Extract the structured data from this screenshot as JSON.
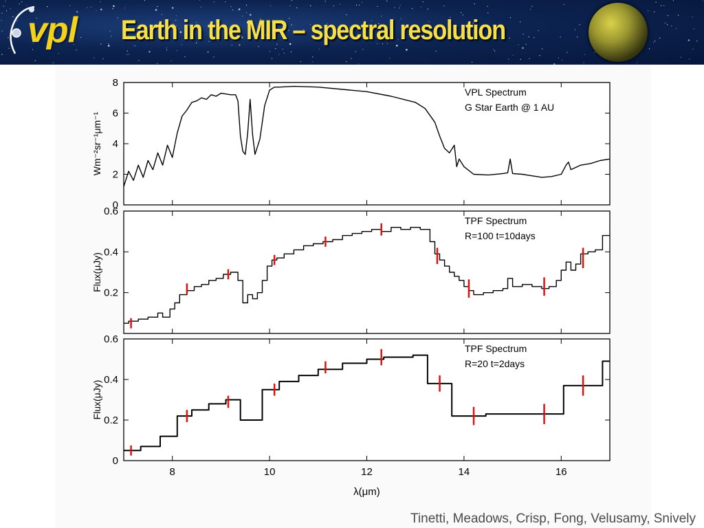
{
  "slide": {
    "title": "Earth in the MIR – spectral resolution",
    "logo_text": "vpl",
    "credit": "Tinetti, Meadows, Crisp, Fong, Velusamy, Snively",
    "colors": {
      "banner": "#0c2350",
      "title": "#f6e04a",
      "logo": "#f3d21c",
      "error_bar": "#e01010",
      "line": "#000000"
    }
  },
  "chart_data": [
    {
      "type": "line",
      "name": "panel-1",
      "legend": [
        "VPL Spectrum",
        "G Star Earth @ 1 AU"
      ],
      "ylabel": "Wm⁻²sr⁻¹μm⁻¹",
      "xlim": [
        7,
        17
      ],
      "ylim": [
        0,
        8
      ],
      "yticks": [
        0,
        2,
        4,
        6,
        8
      ],
      "x": [
        7.0,
        7.1,
        7.2,
        7.3,
        7.4,
        7.5,
        7.6,
        7.7,
        7.8,
        7.9,
        8.0,
        8.1,
        8.2,
        8.3,
        8.4,
        8.5,
        8.6,
        8.7,
        8.8,
        8.9,
        9.0,
        9.1,
        9.2,
        9.3,
        9.35,
        9.4,
        9.45,
        9.5,
        9.55,
        9.6,
        9.65,
        9.7,
        9.8,
        9.9,
        10.0,
        10.1,
        10.2,
        10.5,
        11.0,
        11.5,
        12.0,
        12.5,
        13.0,
        13.2,
        13.4,
        13.5,
        13.6,
        13.7,
        13.8,
        13.85,
        13.9,
        14.0,
        14.2,
        14.5,
        14.8,
        14.9,
        14.95,
        15.0,
        15.2,
        15.5,
        15.6,
        15.8,
        16.0,
        16.1,
        16.15,
        16.2,
        16.4,
        16.6,
        16.8,
        17.0
      ],
      "y": [
        1.2,
        2.2,
        1.6,
        2.6,
        1.8,
        2.9,
        2.3,
        3.4,
        2.6,
        3.9,
        3.1,
        4.7,
        5.8,
        6.2,
        6.7,
        6.8,
        7.0,
        6.9,
        7.2,
        7.1,
        7.3,
        7.25,
        7.2,
        7.2,
        6.8,
        4.5,
        3.5,
        3.3,
        4.7,
        6.9,
        4.6,
        3.3,
        4.3,
        6.5,
        7.5,
        7.7,
        7.7,
        7.75,
        7.7,
        7.55,
        7.4,
        7.1,
        6.7,
        6.3,
        5.4,
        4.5,
        3.7,
        3.4,
        3.9,
        2.5,
        3.0,
        2.5,
        2.0,
        1.95,
        2.05,
        2.1,
        3.0,
        2.05,
        2.0,
        1.85,
        1.8,
        1.85,
        2.0,
        2.6,
        2.8,
        2.3,
        2.6,
        2.7,
        2.9,
        3.0
      ]
    },
    {
      "type": "line",
      "name": "panel-2",
      "legend": [
        "TPF Spectrum",
        "R=100   t=10days"
      ],
      "ylabel": "Flux(μJy)",
      "xlim": [
        7,
        17
      ],
      "ylim": [
        0,
        0.6
      ],
      "yticks": [
        0,
        0.2,
        0.4,
        0.6
      ],
      "ytick_labels": [
        "",
        "0.2",
        "0.4",
        "0.6"
      ],
      "x": [
        7.0,
        7.1,
        7.3,
        7.5,
        7.7,
        7.8,
        7.95,
        8.05,
        8.15,
        8.3,
        8.45,
        8.6,
        8.75,
        8.9,
        9.05,
        9.2,
        9.35,
        9.45,
        9.55,
        9.65,
        9.75,
        9.85,
        9.95,
        10.05,
        10.15,
        10.3,
        10.5,
        10.7,
        10.9,
        11.1,
        11.3,
        11.5,
        11.7,
        11.9,
        12.1,
        12.3,
        12.5,
        12.7,
        12.9,
        13.1,
        13.3,
        13.4,
        13.5,
        13.6,
        13.7,
        13.8,
        13.9,
        14.0,
        14.1,
        14.2,
        14.4,
        14.6,
        14.8,
        14.9,
        15.0,
        15.2,
        15.4,
        15.6,
        15.75,
        15.9,
        16.0,
        16.1,
        16.2,
        16.3,
        16.4,
        16.55,
        16.7,
        16.85,
        17.0
      ],
      "y": [
        0.05,
        0.06,
        0.07,
        0.08,
        0.1,
        0.08,
        0.12,
        0.15,
        0.19,
        0.21,
        0.23,
        0.24,
        0.26,
        0.27,
        0.29,
        0.3,
        0.26,
        0.15,
        0.19,
        0.17,
        0.2,
        0.26,
        0.33,
        0.36,
        0.37,
        0.39,
        0.41,
        0.43,
        0.44,
        0.45,
        0.46,
        0.48,
        0.49,
        0.5,
        0.51,
        0.5,
        0.52,
        0.51,
        0.52,
        0.51,
        0.45,
        0.39,
        0.36,
        0.33,
        0.3,
        0.28,
        0.26,
        0.23,
        0.21,
        0.19,
        0.2,
        0.21,
        0.22,
        0.27,
        0.23,
        0.24,
        0.23,
        0.22,
        0.23,
        0.26,
        0.31,
        0.35,
        0.31,
        0.34,
        0.39,
        0.4,
        0.41,
        0.48,
        0.48
      ],
      "error_bars": [
        {
          "x": 7.15,
          "y": 0.05,
          "err": 0.025
        },
        {
          "x": 8.3,
          "y": 0.22,
          "err": 0.025
        },
        {
          "x": 9.15,
          "y": 0.29,
          "err": 0.025
        },
        {
          "x": 10.1,
          "y": 0.36,
          "err": 0.025
        },
        {
          "x": 11.15,
          "y": 0.45,
          "err": 0.025
        },
        {
          "x": 12.3,
          "y": 0.51,
          "err": 0.03
        },
        {
          "x": 13.45,
          "y": 0.38,
          "err": 0.04
        },
        {
          "x": 14.1,
          "y": 0.22,
          "err": 0.045
        },
        {
          "x": 15.65,
          "y": 0.23,
          "err": 0.045
        },
        {
          "x": 16.45,
          "y": 0.37,
          "err": 0.05
        }
      ]
    },
    {
      "type": "line",
      "name": "panel-3",
      "legend": [
        "TPF Spectrum",
        "R=20   t=2days"
      ],
      "ylabel": "Flux(μJy)",
      "xlabel": "λ(μm)",
      "xlim": [
        7,
        17
      ],
      "ylim": [
        0,
        0.6
      ],
      "yticks": [
        0,
        0.2,
        0.4,
        0.6
      ],
      "ytick_labels": [
        "0",
        "0.2",
        "0.4",
        "0.6"
      ],
      "xticks": [
        8,
        10,
        12,
        14,
        16
      ],
      "x": [
        7.0,
        7.35,
        7.75,
        8.1,
        8.4,
        8.75,
        9.1,
        9.4,
        9.85,
        10.2,
        10.6,
        11.0,
        11.5,
        12.0,
        12.35,
        12.95,
        13.25,
        13.75,
        14.45,
        15.2,
        16.05,
        16.85,
        17.0
      ],
      "y": [
        0.05,
        0.07,
        0.12,
        0.22,
        0.25,
        0.28,
        0.3,
        0.2,
        0.35,
        0.39,
        0.42,
        0.45,
        0.48,
        0.5,
        0.51,
        0.52,
        0.38,
        0.22,
        0.23,
        0.23,
        0.37,
        0.49,
        0.49
      ],
      "error_bars": [
        {
          "x": 7.15,
          "y": 0.05,
          "err": 0.025
        },
        {
          "x": 8.3,
          "y": 0.22,
          "err": 0.03
        },
        {
          "x": 9.15,
          "y": 0.29,
          "err": 0.03
        },
        {
          "x": 10.1,
          "y": 0.35,
          "err": 0.03
        },
        {
          "x": 11.15,
          "y": 0.46,
          "err": 0.03
        },
        {
          "x": 12.3,
          "y": 0.51,
          "err": 0.04
        },
        {
          "x": 13.5,
          "y": 0.38,
          "err": 0.04
        },
        {
          "x": 14.2,
          "y": 0.22,
          "err": 0.045
        },
        {
          "x": 15.65,
          "y": 0.23,
          "err": 0.05
        },
        {
          "x": 16.45,
          "y": 0.37,
          "err": 0.05
        }
      ]
    }
  ]
}
